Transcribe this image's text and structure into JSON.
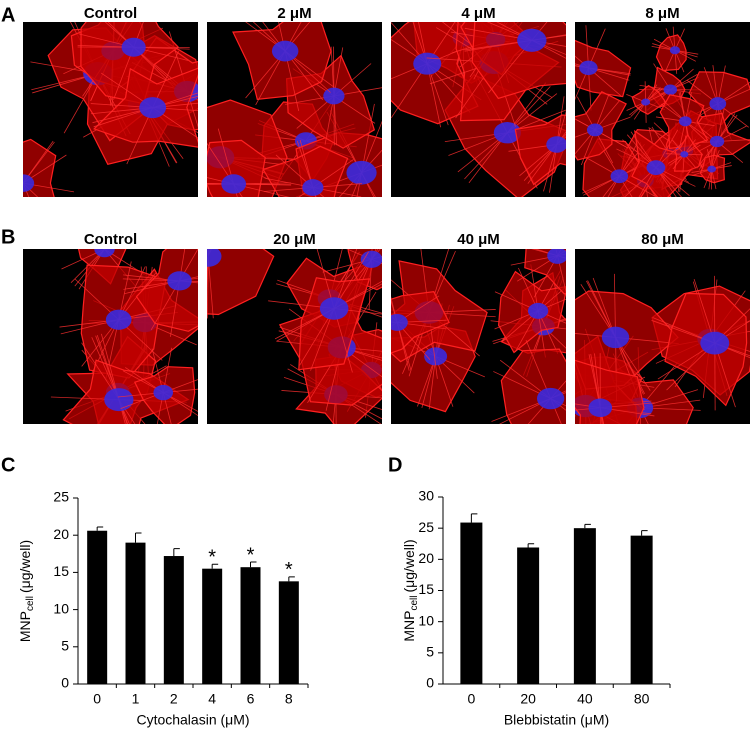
{
  "figure": {
    "panels": [
      {
        "label": "A",
        "images": [
          "Control",
          "2 μM",
          "4 μM",
          "8 μM"
        ]
      },
      {
        "label": "B",
        "images": [
          "Control",
          "20 μM",
          "40 μM",
          "80 μM"
        ]
      }
    ]
  },
  "chart_data": [
    {
      "type": "bar",
      "panel_label": "C",
      "categories": [
        "0",
        "1",
        "2",
        "4",
        "6",
        "8"
      ],
      "values": [
        20.6,
        19.0,
        17.2,
        15.5,
        15.7,
        13.8
      ],
      "errors": [
        0.5,
        1.3,
        1.0,
        0.6,
        0.7,
        0.6
      ],
      "annotations": [
        null,
        null,
        null,
        "*",
        "*",
        "*"
      ],
      "color": "#000000",
      "ylim": [
        0,
        25
      ],
      "yticks": [
        0,
        5,
        10,
        15,
        20,
        25
      ],
      "x_label": "Cytochalasin (μM)",
      "y_label": "MNP",
      "y_label_sub": "cell",
      "y_label_unit": "(μg/well)"
    },
    {
      "type": "bar",
      "panel_label": "D",
      "categories": [
        "0",
        "20",
        "40",
        "80"
      ],
      "values": [
        25.9,
        21.9,
        25.0,
        23.8
      ],
      "errors": [
        1.4,
        0.6,
        0.6,
        0.8
      ],
      "color": "#000000",
      "ylim": [
        0,
        30
      ],
      "yticks": [
        0,
        5,
        10,
        15,
        20,
        25,
        30
      ],
      "x_label": "Blebbistatin (μM)",
      "y_label": "MNP",
      "y_label_sub": "cell",
      "y_label_unit": "(μg/well)"
    }
  ]
}
